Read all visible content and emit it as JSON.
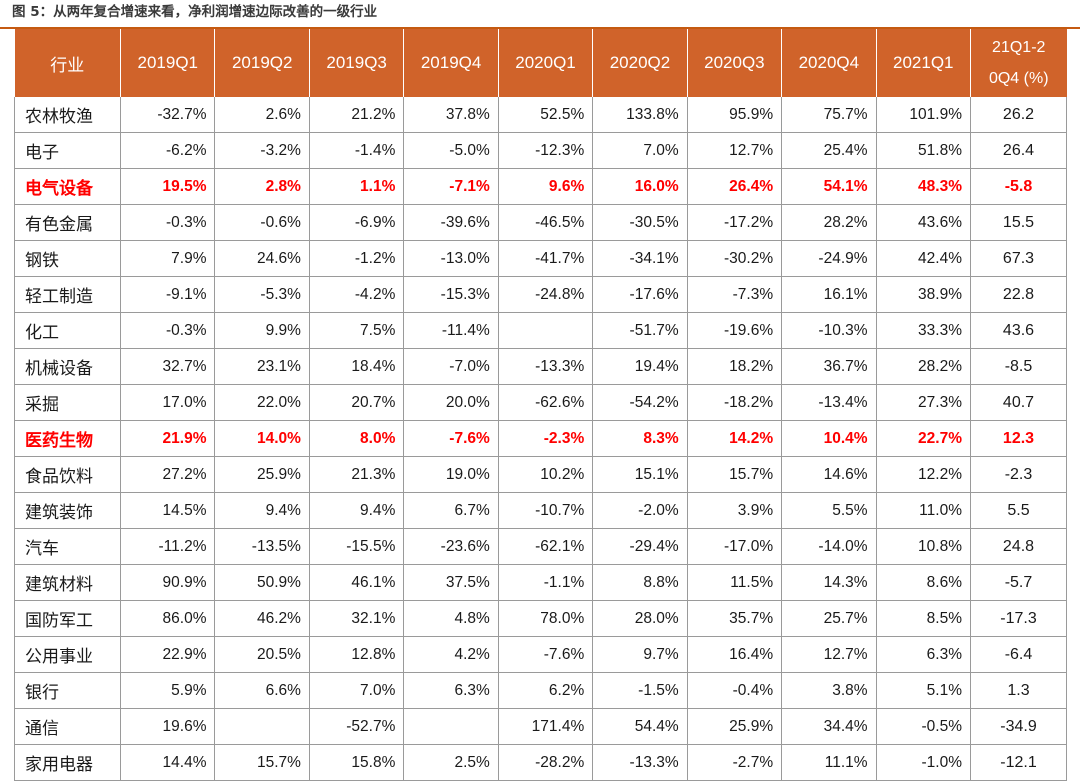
{
  "caption": "图 5：从两年复合增速来看，净利润增速边际改善的一级行业",
  "colors": {
    "header_bg": "#d0632a",
    "header_text": "#ffffff",
    "highlight_text": "#ff0000",
    "rule": "#c55a11"
  },
  "table": {
    "headers": [
      "行业",
      "2019Q1",
      "2019Q2",
      "2019Q3",
      "2019Q4",
      "2020Q1",
      "2020Q2",
      "2020Q3",
      "2020Q4",
      "2021Q1",
      "21Q1-2",
      "0Q4 (%)"
    ],
    "rows": [
      {
        "highlight": false,
        "cells": [
          "农林牧渔",
          "-32.7%",
          "2.6%",
          "21.2%",
          "37.8%",
          "52.5%",
          "133.8%",
          "95.9%",
          "75.7%",
          "101.9%",
          "26.2"
        ]
      },
      {
        "highlight": false,
        "cells": [
          "电子",
          "-6.2%",
          "-3.2%",
          "-1.4%",
          "-5.0%",
          "-12.3%",
          "7.0%",
          "12.7%",
          "25.4%",
          "51.8%",
          "26.4"
        ]
      },
      {
        "highlight": true,
        "cells": [
          "电气设备",
          "19.5%",
          "2.8%",
          "1.1%",
          "-7.1%",
          "9.6%",
          "16.0%",
          "26.4%",
          "54.1%",
          "48.3%",
          "-5.8"
        ]
      },
      {
        "highlight": false,
        "cells": [
          "有色金属",
          "-0.3%",
          "-0.6%",
          "-6.9%",
          "-39.6%",
          "-46.5%",
          "-30.5%",
          "-17.2%",
          "28.2%",
          "43.6%",
          "15.5"
        ]
      },
      {
        "highlight": false,
        "cells": [
          "钢铁",
          "7.9%",
          "24.6%",
          "-1.2%",
          "-13.0%",
          "-41.7%",
          "-34.1%",
          "-30.2%",
          "-24.9%",
          "42.4%",
          "67.3"
        ]
      },
      {
        "highlight": false,
        "cells": [
          "轻工制造",
          "-9.1%",
          "-5.3%",
          "-4.2%",
          "-15.3%",
          "-24.8%",
          "-17.6%",
          "-7.3%",
          "16.1%",
          "38.9%",
          "22.8"
        ]
      },
      {
        "highlight": false,
        "cells": [
          "化工",
          "-0.3%",
          "9.9%",
          "7.5%",
          "-11.4%",
          "",
          "-51.7%",
          "-19.6%",
          "-10.3%",
          "33.3%",
          "43.6"
        ]
      },
      {
        "highlight": false,
        "cells": [
          "机械设备",
          "32.7%",
          "23.1%",
          "18.4%",
          "-7.0%",
          "-13.3%",
          "19.4%",
          "18.2%",
          "36.7%",
          "28.2%",
          "-8.5"
        ]
      },
      {
        "highlight": false,
        "cells": [
          "采掘",
          "17.0%",
          "22.0%",
          "20.7%",
          "20.0%",
          "-62.6%",
          "-54.2%",
          "-18.2%",
          "-13.4%",
          "27.3%",
          "40.7"
        ]
      },
      {
        "highlight": true,
        "cells": [
          "医药生物",
          "21.9%",
          "14.0%",
          "8.0%",
          "-7.6%",
          "-2.3%",
          "8.3%",
          "14.2%",
          "10.4%",
          "22.7%",
          "12.3"
        ]
      },
      {
        "highlight": false,
        "cells": [
          "食品饮料",
          "27.2%",
          "25.9%",
          "21.3%",
          "19.0%",
          "10.2%",
          "15.1%",
          "15.7%",
          "14.6%",
          "12.2%",
          "-2.3"
        ]
      },
      {
        "highlight": false,
        "cells": [
          "建筑装饰",
          "14.5%",
          "9.4%",
          "9.4%",
          "6.7%",
          "-10.7%",
          "-2.0%",
          "3.9%",
          "5.5%",
          "11.0%",
          "5.5"
        ]
      },
      {
        "highlight": false,
        "cells": [
          "汽车",
          "-11.2%",
          "-13.5%",
          "-15.5%",
          "-23.6%",
          "-62.1%",
          "-29.4%",
          "-17.0%",
          "-14.0%",
          "10.8%",
          "24.8"
        ]
      },
      {
        "highlight": false,
        "cells": [
          "建筑材料",
          "90.9%",
          "50.9%",
          "46.1%",
          "37.5%",
          "-1.1%",
          "8.8%",
          "11.5%",
          "14.3%",
          "8.6%",
          "-5.7"
        ]
      },
      {
        "highlight": false,
        "cells": [
          "国防军工",
          "86.0%",
          "46.2%",
          "32.1%",
          "4.8%",
          "78.0%",
          "28.0%",
          "35.7%",
          "25.7%",
          "8.5%",
          "-17.3"
        ]
      },
      {
        "highlight": false,
        "cells": [
          "公用事业",
          "22.9%",
          "20.5%",
          "12.8%",
          "4.2%",
          "-7.6%",
          "9.7%",
          "16.4%",
          "12.7%",
          "6.3%",
          "-6.4"
        ]
      },
      {
        "highlight": false,
        "cells": [
          "银行",
          "5.9%",
          "6.6%",
          "7.0%",
          "6.3%",
          "6.2%",
          "-1.5%",
          "-0.4%",
          "3.8%",
          "5.1%",
          "1.3"
        ]
      },
      {
        "highlight": false,
        "cells": [
          "通信",
          "19.6%",
          "",
          "-52.7%",
          "",
          "171.4%",
          "54.4%",
          "25.9%",
          "34.4%",
          "-0.5%",
          "-34.9"
        ]
      },
      {
        "highlight": false,
        "cells": [
          "家用电器",
          "14.4%",
          "15.7%",
          "15.8%",
          "2.5%",
          "-28.2%",
          "-13.3%",
          "-2.7%",
          "11.1%",
          "-1.0%",
          "-12.1"
        ]
      }
    ]
  }
}
